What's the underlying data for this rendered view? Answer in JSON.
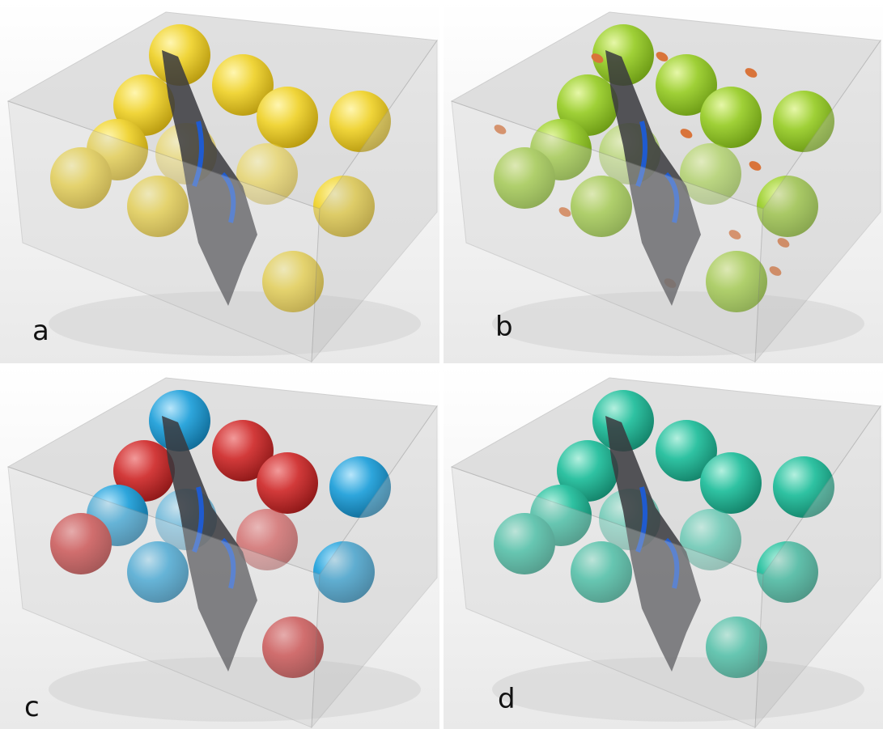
{
  "panels": [
    {
      "label": "a"
    },
    {
      "label": "b"
    },
    {
      "label": "c"
    },
    {
      "label": "d"
    }
  ]
}
